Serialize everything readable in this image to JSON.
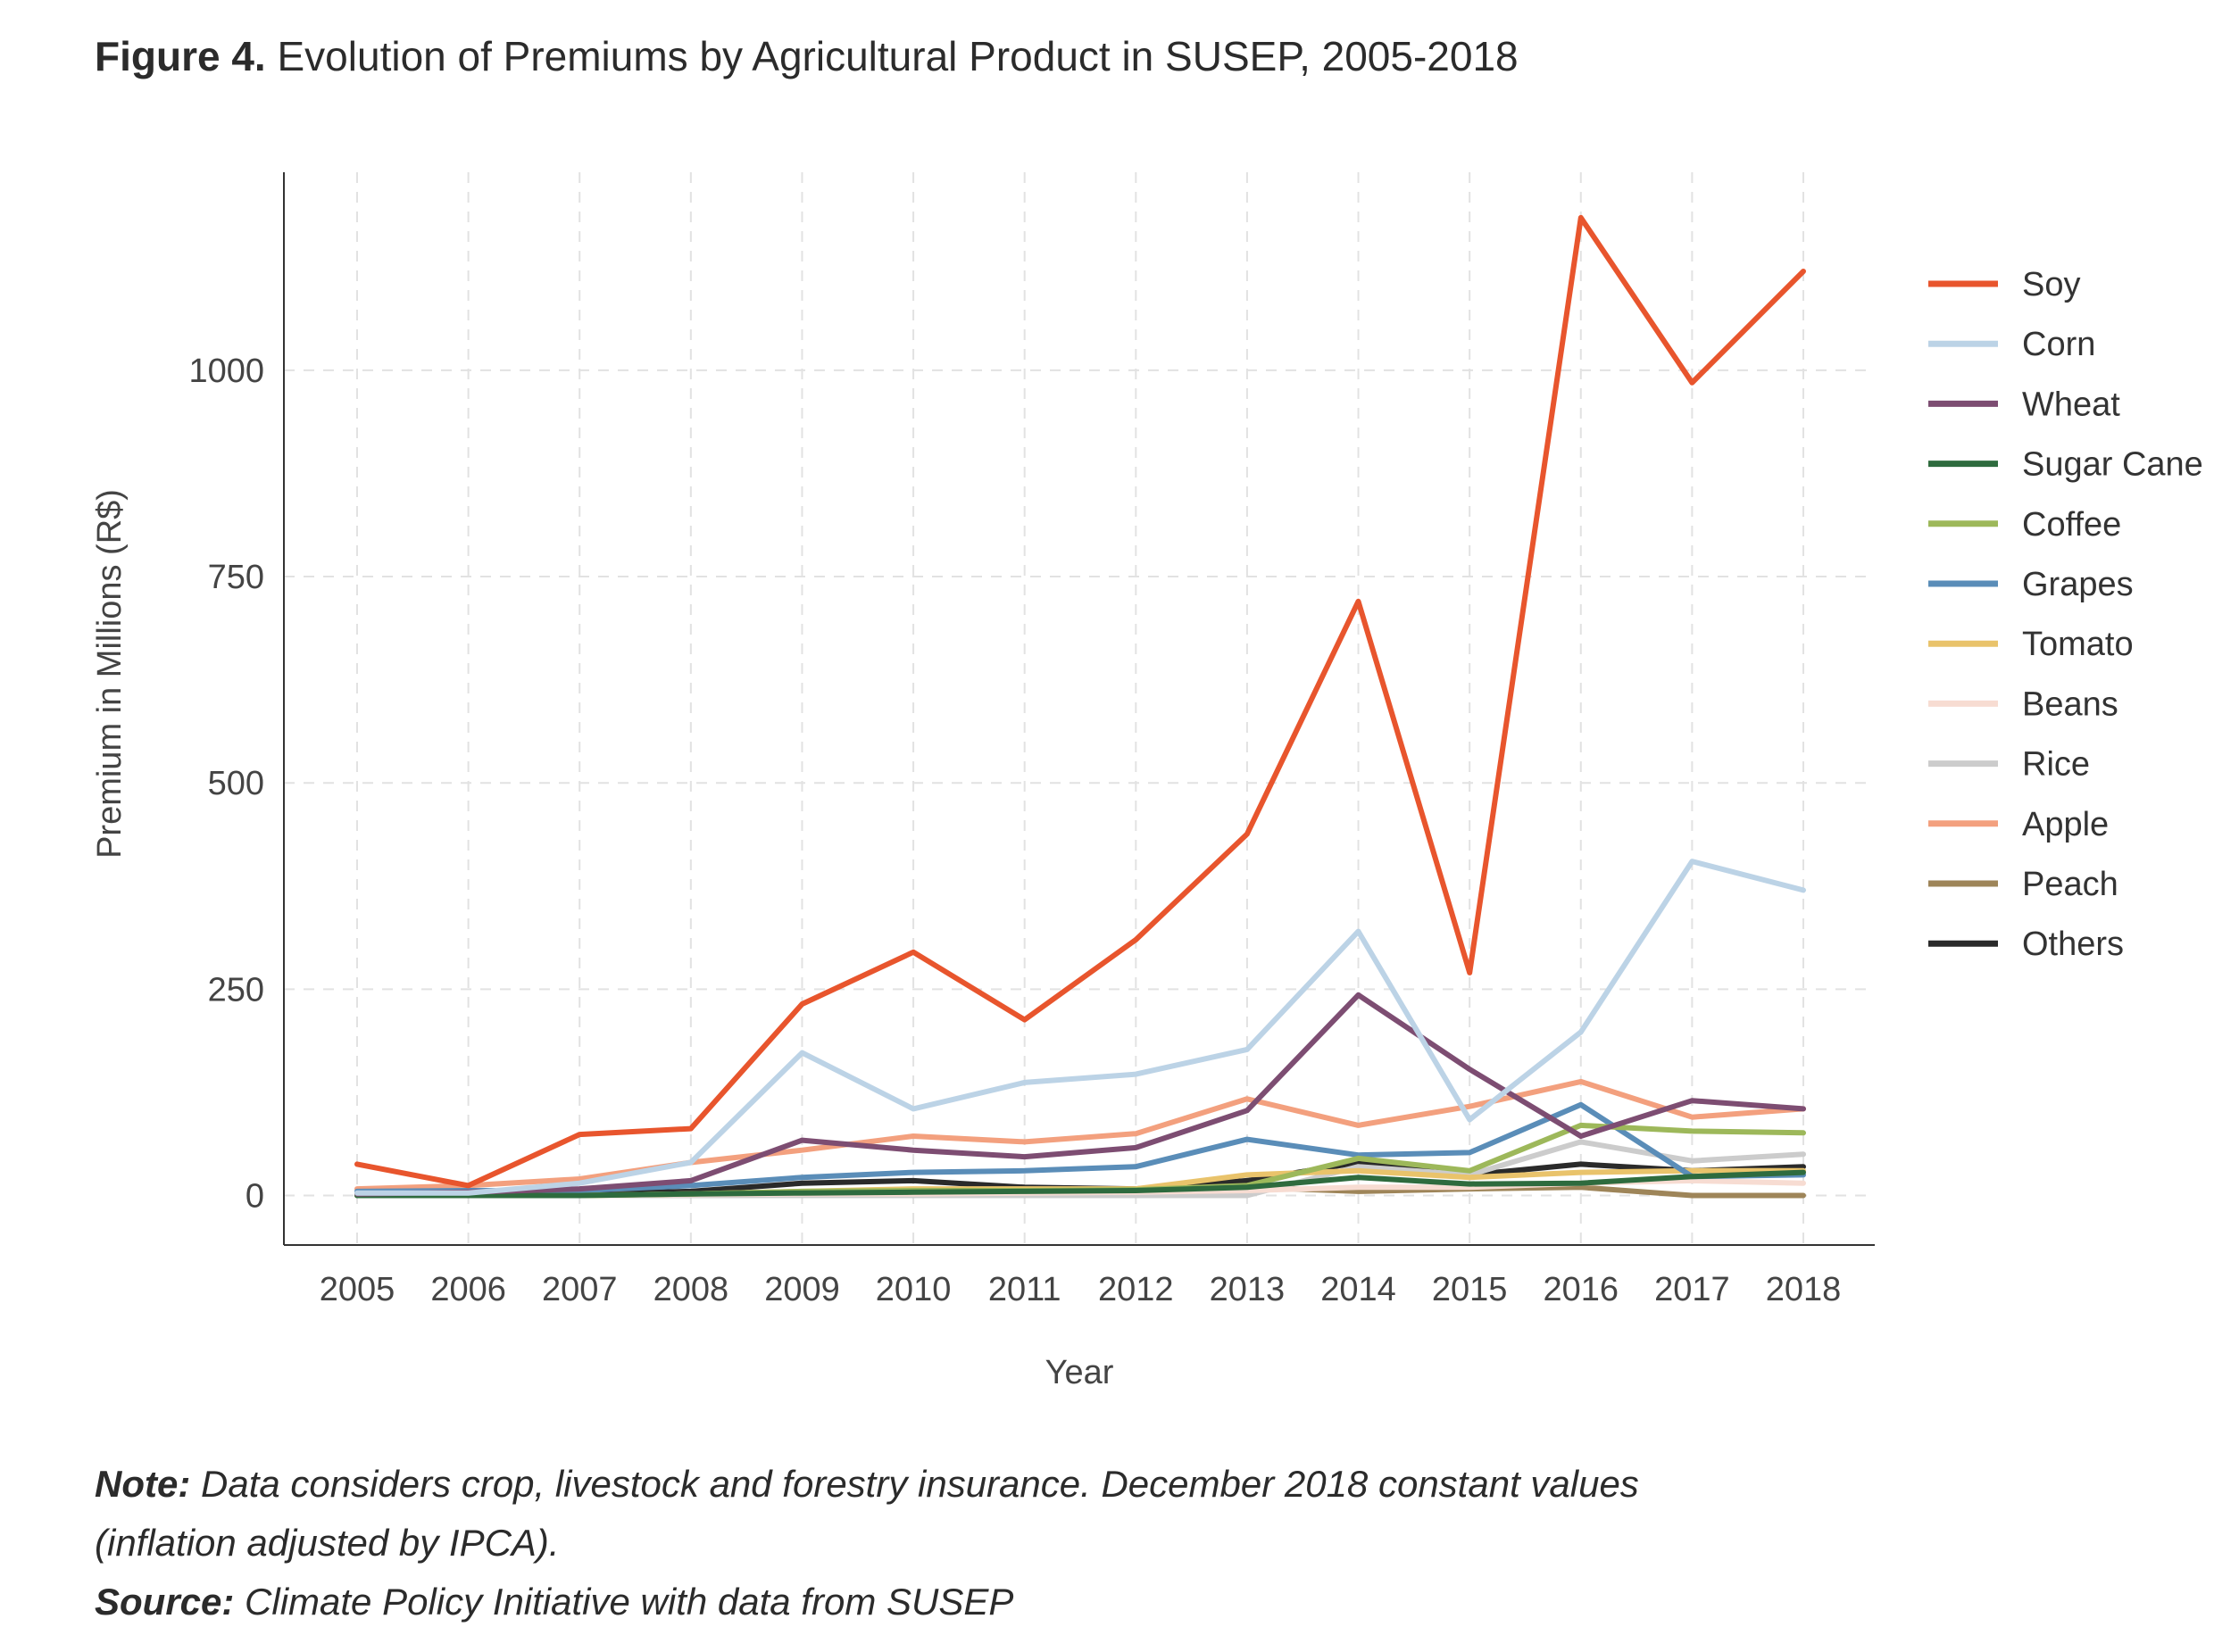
{
  "figure": {
    "label": "Figure 4.",
    "title": "Evolution of Premiums by Agricultural Product in SUSEP, 2005-2018"
  },
  "notes": {
    "note_label": "Note:",
    "note_text": "Data considers crop, livestock and forestry insurance. December 2018 constant values",
    "note_text2": "(inflation adjusted by IPCA).",
    "source_label": "Source:",
    "source_text": "Climate Policy Initiative with data from SUSEP"
  },
  "chart_data": {
    "type": "line",
    "title": "Evolution of Premiums by Agricultural Product in SUSEP, 2005-2018",
    "xlabel": "Year",
    "ylabel": "Premium in Millions (R$)",
    "x": [
      "2005",
      "2006",
      "2007",
      "2008",
      "2009",
      "2010",
      "2011",
      "2012",
      "2013",
      "2014",
      "2015",
      "2016",
      "2017",
      "2018"
    ],
    "y_ticks": [
      0,
      250,
      500,
      750,
      1000
    ],
    "ylim": [
      -60,
      1240
    ],
    "grid": true,
    "legend_position": "right",
    "series": [
      {
        "name": "Soy",
        "color": "#e8552d",
        "values": [
          38,
          12,
          74,
          81,
          232,
          295,
          213,
          310,
          438,
          720,
          270,
          1185,
          985,
          1120
        ]
      },
      {
        "name": "Corn",
        "color": "#bcd3e6",
        "values": [
          3,
          3,
          15,
          40,
          173,
          105,
          137,
          147,
          177,
          320,
          92,
          198,
          405,
          370
        ]
      },
      {
        "name": "Wheat",
        "color": "#7d4d72",
        "values": [
          2,
          4,
          8,
          18,
          67,
          55,
          47,
          58,
          103,
          243,
          153,
          72,
          115,
          105
        ]
      },
      {
        "name": "Sugar Cane",
        "color": "#2e6b3e",
        "values": [
          0,
          0,
          0,
          2,
          3,
          4,
          5,
          6,
          10,
          22,
          14,
          15,
          23,
          28
        ]
      },
      {
        "name": "Coffee",
        "color": "#9db85a",
        "values": [
          0,
          0,
          0,
          2,
          5,
          6,
          6,
          7,
          12,
          45,
          30,
          85,
          78,
          76
        ]
      },
      {
        "name": "Grapes",
        "color": "#5a8db8",
        "values": [
          5,
          6,
          6,
          12,
          22,
          28,
          30,
          35,
          68,
          49,
          52,
          110,
          23,
          25
        ]
      },
      {
        "name": "Tomato",
        "color": "#e9c36b",
        "values": [
          0,
          0,
          0,
          2,
          5,
          8,
          8,
          8,
          25,
          30,
          22,
          28,
          30,
          30
        ]
      },
      {
        "name": "Beans",
        "color": "#f7dcd2",
        "values": [
          0,
          0,
          0,
          1,
          2,
          2,
          3,
          4,
          6,
          10,
          10,
          15,
          18,
          15
        ]
      },
      {
        "name": "Rice",
        "color": "#cccccc",
        "values": [
          0,
          0,
          0,
          0,
          0,
          0,
          0,
          0,
          0,
          35,
          25,
          65,
          42,
          50
        ]
      },
      {
        "name": "Apple",
        "color": "#f3a07e",
        "values": [
          8,
          12,
          20,
          40,
          55,
          72,
          65,
          75,
          117,
          85,
          108,
          138,
          95,
          105
        ]
      },
      {
        "name": "Peach",
        "color": "#9e8559",
        "values": [
          0,
          0,
          0,
          2,
          3,
          3,
          3,
          2,
          10,
          5,
          8,
          10,
          0,
          0
        ]
      },
      {
        "name": "Others",
        "color": "#2a2a2a",
        "values": [
          2,
          2,
          2,
          5,
          15,
          18,
          10,
          8,
          18,
          40,
          25,
          38,
          30,
          35
        ]
      }
    ]
  }
}
